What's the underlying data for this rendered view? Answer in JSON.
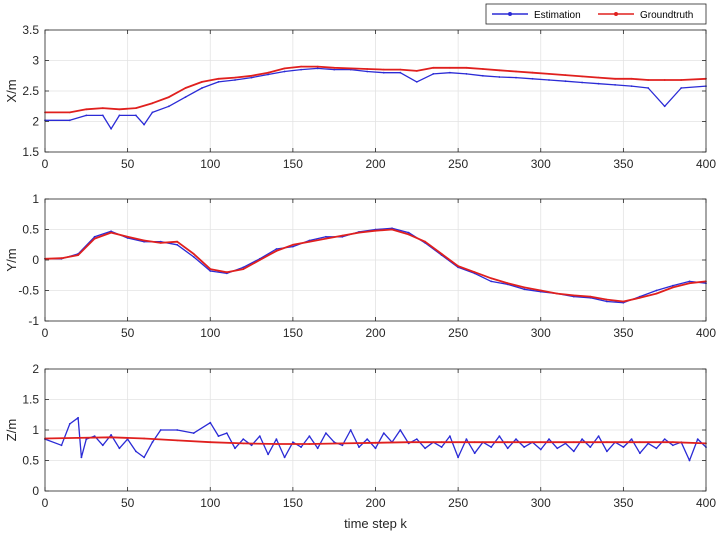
{
  "chart_data": {
    "type": "line",
    "legend": {
      "placement": "top-right",
      "entries": [
        {
          "label": "Estimation",
          "color": "#2b2bd6",
          "marker": "point"
        },
        {
          "label": "Groundtruth",
          "color": "#e0201e",
          "marker": "point"
        }
      ]
    },
    "xlabel": "time step k",
    "x_ticks": [
      "0",
      "50",
      "100",
      "150",
      "200",
      "250",
      "300",
      "350",
      "400"
    ],
    "xlim": [
      0,
      400
    ],
    "grid": true,
    "colors": {
      "estimation": "#2b2bd6",
      "groundtruth": "#e0201e"
    },
    "subplots": [
      {
        "ylabel": "X/m",
        "ylim": [
          1.5,
          3.5
        ],
        "y_ticks": [
          "1.5",
          "2",
          "2.5",
          "3",
          "3.5"
        ],
        "series": [
          {
            "name": "Groundtruth",
            "x": [
              0,
              15,
              25,
              35,
              45,
              55,
              65,
              75,
              85,
              95,
              105,
              115,
              125,
              135,
              145,
              155,
              165,
              175,
              185,
              195,
              205,
              215,
              225,
              235,
              245,
              255,
              265,
              275,
              285,
              295,
              305,
              315,
              325,
              335,
              345,
              355,
              365,
              375,
              385,
              400
            ],
            "y": [
              2.15,
              2.15,
              2.2,
              2.22,
              2.2,
              2.22,
              2.3,
              2.4,
              2.55,
              2.65,
              2.7,
              2.72,
              2.75,
              2.8,
              2.87,
              2.9,
              2.9,
              2.88,
              2.87,
              2.86,
              2.85,
              2.85,
              2.83,
              2.88,
              2.88,
              2.88,
              2.86,
              2.84,
              2.82,
              2.8,
              2.78,
              2.76,
              2.74,
              2.72,
              2.7,
              2.7,
              2.68,
              2.68,
              2.68,
              2.7
            ]
          },
          {
            "name": "Estimation",
            "x": [
              0,
              15,
              25,
              35,
              40,
              45,
              55,
              60,
              65,
              75,
              85,
              95,
              105,
              115,
              125,
              135,
              145,
              155,
              165,
              175,
              185,
              195,
              205,
              215,
              225,
              235,
              245,
              255,
              265,
              275,
              285,
              295,
              305,
              315,
              325,
              335,
              345,
              355,
              365,
              375,
              385,
              400
            ],
            "y": [
              2.02,
              2.02,
              2.1,
              2.1,
              1.88,
              2.1,
              2.1,
              1.95,
              2.15,
              2.25,
              2.4,
              2.55,
              2.65,
              2.68,
              2.72,
              2.77,
              2.82,
              2.85,
              2.87,
              2.85,
              2.85,
              2.82,
              2.8,
              2.8,
              2.65,
              2.78,
              2.8,
              2.78,
              2.75,
              2.73,
              2.72,
              2.7,
              2.68,
              2.66,
              2.64,
              2.62,
              2.6,
              2.58,
              2.55,
              2.25,
              2.55,
              2.58
            ]
          }
        ]
      },
      {
        "ylabel": "Y/m",
        "ylim": [
          -1,
          1
        ],
        "y_ticks": [
          "-1",
          "-0.5",
          "0",
          "0.5",
          "1"
        ],
        "series": [
          {
            "name": "Groundtruth",
            "x": [
              0,
              10,
              20,
              30,
              40,
              50,
              60,
              70,
              80,
              90,
              100,
              110,
              120,
              130,
              140,
              150,
              160,
              170,
              180,
              190,
              200,
              210,
              220,
              230,
              240,
              250,
              260,
              270,
              280,
              290,
              300,
              310,
              320,
              330,
              340,
              350,
              360,
              370,
              380,
              390,
              400
            ],
            "y": [
              0.02,
              0.03,
              0.08,
              0.35,
              0.45,
              0.38,
              0.32,
              0.28,
              0.3,
              0.1,
              -0.15,
              -0.2,
              -0.15,
              0.0,
              0.15,
              0.25,
              0.3,
              0.35,
              0.4,
              0.45,
              0.48,
              0.5,
              0.42,
              0.3,
              0.1,
              -0.1,
              -0.2,
              -0.3,
              -0.38,
              -0.45,
              -0.5,
              -0.55,
              -0.58,
              -0.6,
              -0.65,
              -0.68,
              -0.62,
              -0.55,
              -0.45,
              -0.38,
              -0.35
            ]
          },
          {
            "name": "Estimation",
            "x": [
              0,
              10,
              20,
              30,
              40,
              50,
              60,
              70,
              80,
              90,
              100,
              110,
              120,
              130,
              140,
              150,
              160,
              170,
              180,
              190,
              200,
              210,
              220,
              230,
              240,
              250,
              260,
              270,
              280,
              290,
              300,
              310,
              320,
              330,
              340,
              350,
              360,
              370,
              380,
              390,
              400
            ],
            "y": [
              0.02,
              0.02,
              0.1,
              0.38,
              0.47,
              0.36,
              0.3,
              0.3,
              0.25,
              0.05,
              -0.18,
              -0.22,
              -0.12,
              0.02,
              0.18,
              0.22,
              0.32,
              0.38,
              0.38,
              0.46,
              0.5,
              0.52,
              0.45,
              0.28,
              0.08,
              -0.12,
              -0.22,
              -0.35,
              -0.4,
              -0.48,
              -0.52,
              -0.55,
              -0.6,
              -0.62,
              -0.68,
              -0.7,
              -0.6,
              -0.5,
              -0.42,
              -0.35,
              -0.38
            ]
          }
        ]
      },
      {
        "ylabel": "Z/m",
        "ylim": [
          0,
          2
        ],
        "y_ticks": [
          "0",
          "0.5",
          "1",
          "1.5",
          "2"
        ],
        "series": [
          {
            "name": "Groundtruth",
            "x": [
              0,
              20,
              40,
              60,
              80,
              100,
              120,
              140,
              160,
              180,
              200,
              220,
              240,
              260,
              280,
              300,
              320,
              340,
              360,
              380,
              400
            ],
            "y": [
              0.86,
              0.87,
              0.88,
              0.86,
              0.83,
              0.8,
              0.78,
              0.77,
              0.77,
              0.78,
              0.79,
              0.8,
              0.8,
              0.8,
              0.8,
              0.8,
              0.8,
              0.8,
              0.8,
              0.8,
              0.78
            ]
          },
          {
            "name": "Estimation",
            "x": [
              0,
              10,
              15,
              20,
              22,
              25,
              30,
              35,
              40,
              45,
              50,
              55,
              60,
              65,
              70,
              80,
              90,
              100,
              105,
              110,
              115,
              120,
              125,
              130,
              135,
              140,
              145,
              150,
              155,
              160,
              165,
              170,
              175,
              180,
              185,
              190,
              195,
              200,
              205,
              210,
              215,
              220,
              225,
              230,
              235,
              240,
              245,
              250,
              255,
              260,
              265,
              270,
              275,
              280,
              285,
              290,
              295,
              300,
              305,
              310,
              315,
              320,
              325,
              330,
              335,
              340,
              345,
              350,
              355,
              360,
              365,
              370,
              375,
              380,
              385,
              390,
              395,
              400
            ],
            "y": [
              0.85,
              0.75,
              1.1,
              1.2,
              0.55,
              0.85,
              0.9,
              0.75,
              0.92,
              0.7,
              0.85,
              0.65,
              0.55,
              0.8,
              1.0,
              1.0,
              0.95,
              1.12,
              0.9,
              0.95,
              0.7,
              0.85,
              0.75,
              0.9,
              0.6,
              0.85,
              0.55,
              0.8,
              0.72,
              0.9,
              0.7,
              0.95,
              0.8,
              0.75,
              1.0,
              0.72,
              0.85,
              0.7,
              0.95,
              0.8,
              1.0,
              0.78,
              0.85,
              0.7,
              0.8,
              0.72,
              0.9,
              0.55,
              0.85,
              0.62,
              0.8,
              0.72,
              0.9,
              0.7,
              0.85,
              0.72,
              0.8,
              0.68,
              0.85,
              0.7,
              0.78,
              0.65,
              0.85,
              0.72,
              0.9,
              0.65,
              0.8,
              0.72,
              0.85,
              0.62,
              0.78,
              0.7,
              0.85,
              0.75,
              0.8,
              0.5,
              0.85,
              0.72
            ]
          }
        ]
      }
    ]
  }
}
